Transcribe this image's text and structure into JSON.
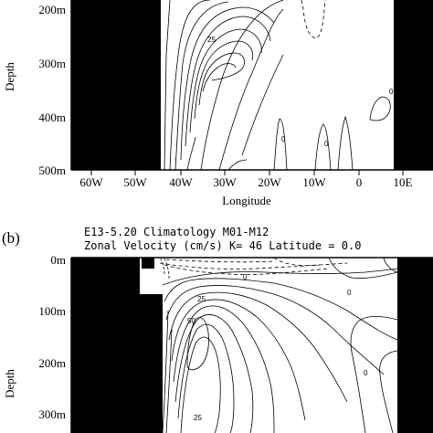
{
  "chart_data": [
    {
      "type": "contour",
      "panel_label": "",
      "title": "",
      "xlabel": "Longitude",
      "ylabel": "Depth",
      "x_ticks": [
        "60W",
        "50W",
        "40W",
        "30W",
        "20W",
        "10W",
        "0",
        "10E"
      ],
      "y_ticks": [
        "200m",
        "300m",
        "400m",
        "500m"
      ],
      "ylim": [
        500,
        150
      ],
      "xlim": [
        65,
        -12
      ],
      "contour_labels": [
        {
          "value": "25",
          "lon": -35,
          "depth": 225
        },
        {
          "value": "0",
          "lon": 3,
          "depth": 375
        },
        {
          "value": "0",
          "lon": -4,
          "depth": 435
        },
        {
          "value": "0",
          "lon": 5,
          "depth": 470
        }
      ]
    },
    {
      "type": "contour",
      "panel_label": "(b)",
      "title": "E13-5.20  Climatology M01-M12",
      "subtitle": "Zonal Velocity (cm/s) K=  46 Latitude =     0.0",
      "xlabel": "",
      "ylabel": "Depth",
      "x_ticks": [],
      "y_ticks": [
        "0m",
        "100m",
        "200m",
        "300m"
      ],
      "ylim": [
        340,
        0
      ],
      "xlim": [
        65,
        -12
      ],
      "contour_labels": [
        {
          "value": "0",
          "lon": -20,
          "depth": 20
        },
        {
          "value": "25",
          "lon": -27,
          "depth": 55
        },
        {
          "value": "50",
          "lon": -35,
          "depth": 105
        },
        {
          "value": "0",
          "lon": 0,
          "depth": 35
        },
        {
          "value": "0",
          "lon": 2,
          "depth": 190
        },
        {
          "value": "25",
          "lon": -28,
          "depth": 330
        }
      ]
    }
  ]
}
